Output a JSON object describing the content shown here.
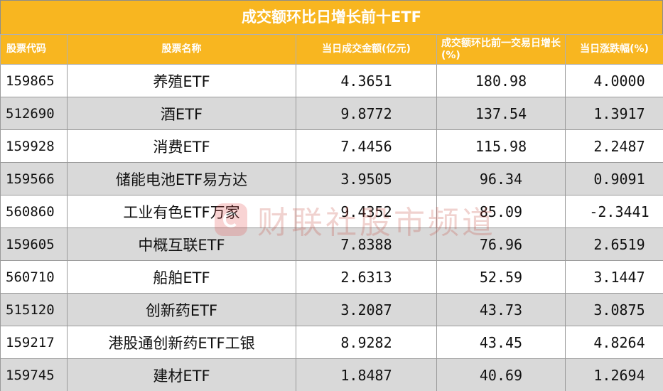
{
  "title": "成交额环比日增长前十ETF",
  "headers": {
    "code": "股票代码",
    "name": "股票名称",
    "turnover": "当日成交金额(亿元)",
    "growth": "成交额环比前一交易日增长(%)",
    "change": "当日涨跌幅(%)"
  },
  "rows": [
    {
      "code": "159865",
      "name": "养殖ETF",
      "turnover": "4.3651",
      "growth": "180.98",
      "change": "4.0000"
    },
    {
      "code": "512690",
      "name": "酒ETF",
      "turnover": "9.8772",
      "growth": "137.54",
      "change": "1.3917"
    },
    {
      "code": "159928",
      "name": "消费ETF",
      "turnover": "7.4456",
      "growth": "115.98",
      "change": "2.2487"
    },
    {
      "code": "159566",
      "name": "储能电池ETF易方达",
      "turnover": "3.9505",
      "growth": "96.34",
      "change": "0.9091"
    },
    {
      "code": "560860",
      "name": "工业有色ETF万家",
      "turnover": "9.4352",
      "growth": "85.09",
      "change": "-2.3441"
    },
    {
      "code": "159605",
      "name": "中概互联ETF",
      "turnover": "7.8388",
      "growth": "76.96",
      "change": "2.6519"
    },
    {
      "code": "560710",
      "name": "船舶ETF",
      "turnover": "2.6313",
      "growth": "52.59",
      "change": "3.1447"
    },
    {
      "code": "515120",
      "name": "创新药ETF",
      "turnover": "3.2087",
      "growth": "43.73",
      "change": "3.0875"
    },
    {
      "code": "159217",
      "name": "港股通创新药ETF工银",
      "turnover": "8.9282",
      "growth": "43.45",
      "change": "4.8264"
    },
    {
      "code": "159745",
      "name": "建材ETF",
      "turnover": "1.8487",
      "growth": "40.69",
      "change": "1.2694"
    }
  ],
  "watermark": {
    "text": "财联社股市频道",
    "logo_icon": "cls-logo-icon"
  },
  "colors": {
    "header_bg": "#f8b620",
    "header_text": "#ffffff",
    "alt_row_bg": "#d9d9d9"
  }
}
